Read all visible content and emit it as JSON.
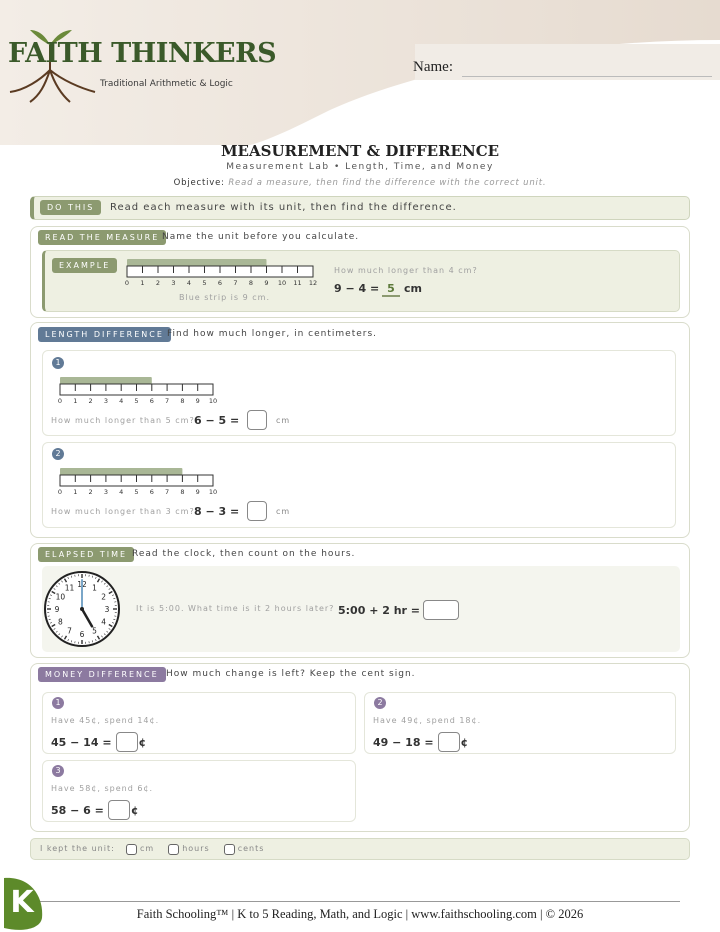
{
  "header": {
    "brand": "FAITH THINKERS",
    "tagline": "Traditional Arithmetic & Logic",
    "name_label": "Name:"
  },
  "title": "MEASUREMENT & DIFFERENCE",
  "subtitle": "Measurement Lab • Length, Time, and Money",
  "objective": {
    "label": "Objective:",
    "text": "Read a measure, then find the difference with the correct unit."
  },
  "do_this": {
    "tag": "DO THIS",
    "text": "Read each measure with its unit, then find the difference."
  },
  "read_measure": {
    "tag": "READ THE MEASURE",
    "instruction": "Name the unit before you calculate.",
    "example": {
      "tag": "EXAMPLE",
      "ruler": {
        "labels": [
          0,
          1,
          2,
          3,
          4,
          5,
          6,
          7,
          8,
          9,
          10,
          11,
          12
        ],
        "strip": 9
      },
      "caption": "Blue strip is 9 cm.",
      "question": "How much longer than 4 cm?",
      "equation": "9 − 4 =",
      "answer": "5",
      "unit": "cm"
    }
  },
  "length_difference": {
    "tag": "LENGTH DIFFERENCE",
    "instruction": "Find how much longer, in centimeters.",
    "problems": [
      {
        "number": "1",
        "ruler": {
          "labels": [
            0,
            1,
            2,
            3,
            4,
            5,
            6,
            7,
            8,
            9,
            10
          ],
          "strip": 6
        },
        "question": "How much longer than 5 cm?",
        "equation": "6 − 5 =",
        "unit": "cm"
      },
      {
        "number": "2",
        "ruler": {
          "labels": [
            0,
            1,
            2,
            3,
            4,
            5,
            6,
            7,
            8,
            9,
            10
          ],
          "strip": 8
        },
        "question": "How much longer than 3 cm?",
        "equation": "8 − 3 =",
        "unit": "cm"
      }
    ]
  },
  "elapsed_time": {
    "tag": "ELAPSED TIME",
    "instruction": "Read the clock, then count on the hours.",
    "clock": {
      "numbers": [
        12,
        1,
        2,
        3,
        4,
        5,
        6,
        7,
        8,
        9,
        10,
        11
      ],
      "hour": 5,
      "minute": 0
    },
    "prompt": "It is 5:00. What time is it 2 hours later?",
    "equation": "5:00 + 2 hr ="
  },
  "money_difference": {
    "tag": "MONEY DIFFERENCE",
    "instruction": "How much change is left? Keep the cent sign.",
    "problems": [
      {
        "number": "1",
        "text": "Have 45¢, spend 14¢.",
        "equation": "45 − 14 =",
        "unit": "¢"
      },
      {
        "number": "2",
        "text": "Have 49¢, spend 18¢.",
        "equation": "49 − 18 =",
        "unit": "¢"
      },
      {
        "number": "3",
        "text": "Have 58¢, spend 6¢.",
        "equation": "58 − 6 =",
        "unit": "¢"
      }
    ]
  },
  "check": {
    "label": "I kept the unit:",
    "options": [
      "cm",
      "hours",
      "cents"
    ]
  },
  "footer": {
    "text": "Faith Schooling™ | K to 5 Reading, Math, and Logic | www.faithschooling.com | © 2026",
    "logo": "K"
  }
}
